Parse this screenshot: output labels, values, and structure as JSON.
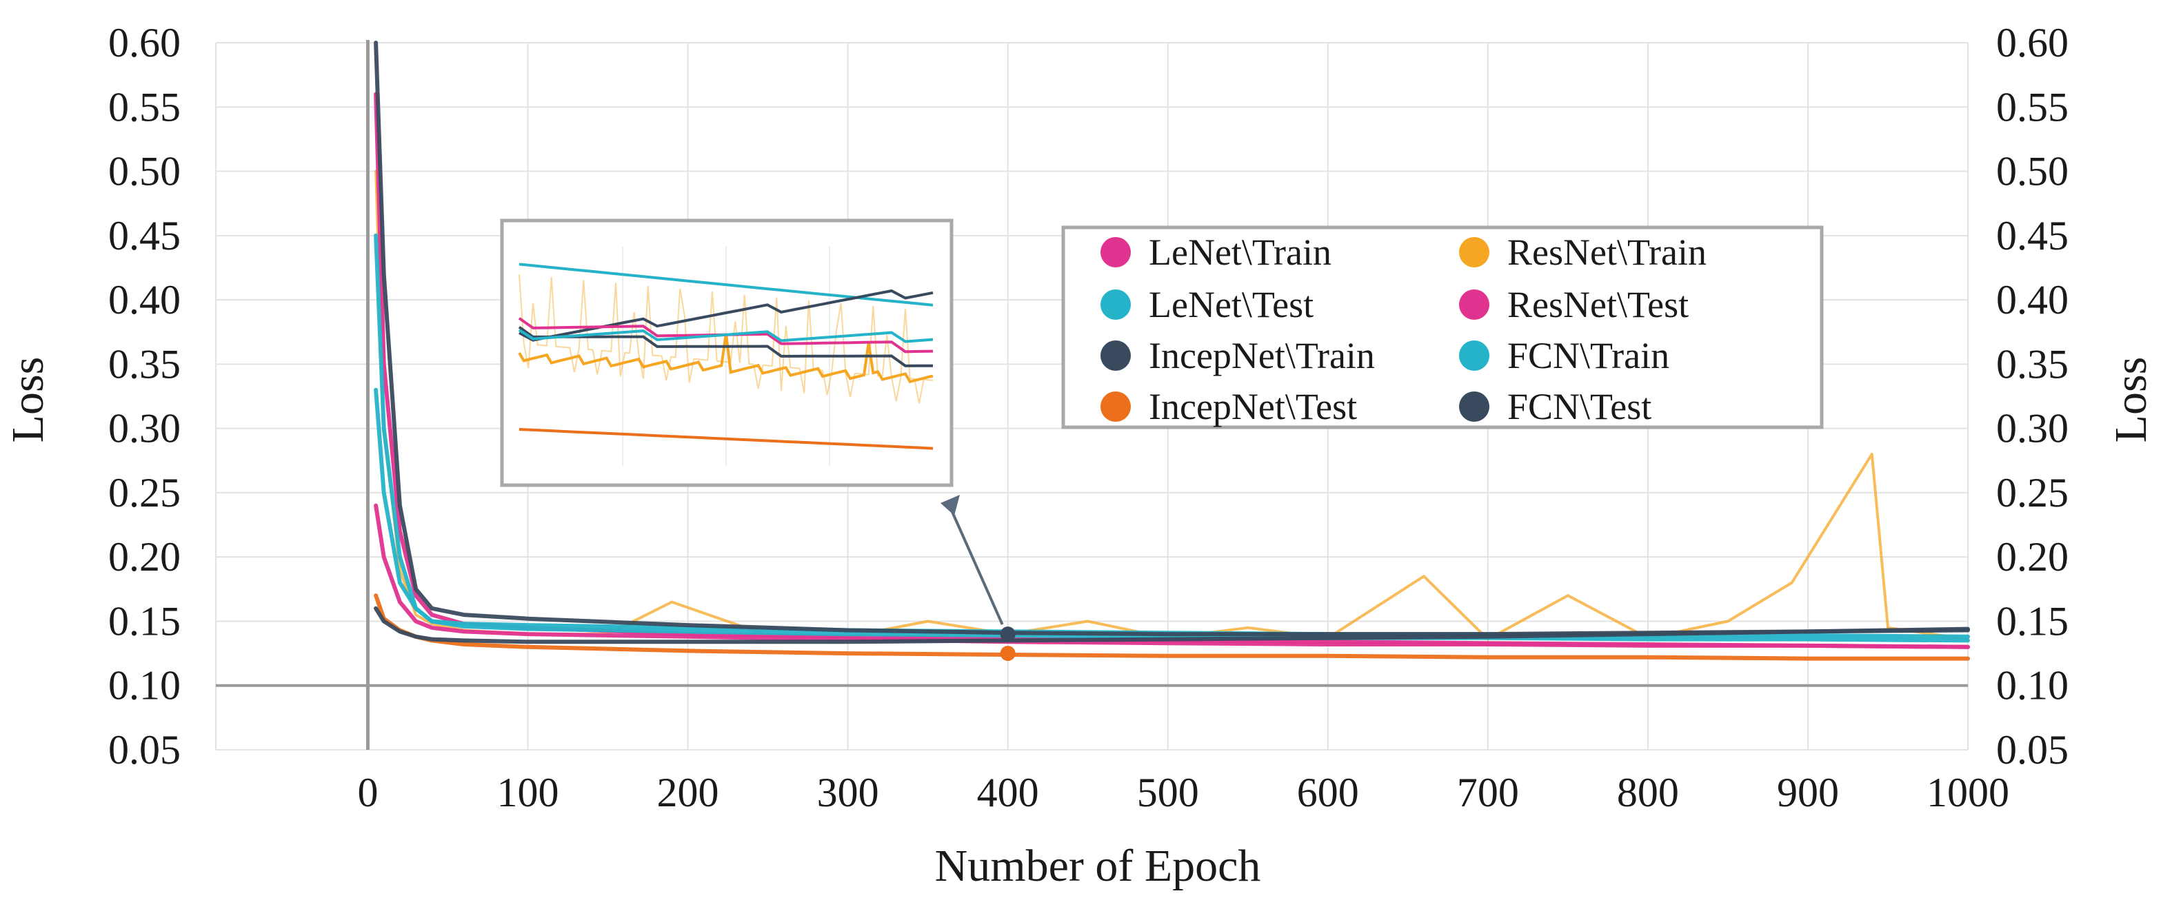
{
  "chart_data": {
    "type": "line",
    "title": "",
    "xlabel": "Number of Epoch",
    "ylabel_left": "Loss",
    "ylabel_right": "Loss",
    "xlim": [
      -95,
      1000
    ],
    "ylim": [
      0.05,
      0.6
    ],
    "x_ticks": [
      0,
      100,
      200,
      300,
      400,
      500,
      600,
      700,
      800,
      900,
      1000
    ],
    "x_tick_labels": [
      "0",
      "100",
      "200",
      "300",
      "400",
      "500",
      "600",
      "700",
      "800",
      "900",
      "1000"
    ],
    "y_ticks": [
      0.05,
      0.1,
      0.15,
      0.2,
      0.25,
      0.3,
      0.35,
      0.4,
      0.45,
      0.5,
      0.55,
      0.6
    ],
    "y_tick_labels": [
      "0.05",
      "0.10",
      "0.15",
      "0.20",
      "0.25",
      "0.30",
      "0.35",
      "0.40",
      "0.45",
      "0.50",
      "0.55",
      "0.60"
    ],
    "grid": true,
    "legend_position": "upper-right",
    "series": [
      {
        "name": "LeNet\\Train",
        "color": "#e0338f",
        "x": [
          5,
          10,
          20,
          30,
          40,
          60,
          100,
          200,
          300,
          400,
          500,
          600,
          700,
          800,
          900,
          1000
        ],
        "values": [
          0.56,
          0.35,
          0.22,
          0.17,
          0.155,
          0.148,
          0.145,
          0.14,
          0.138,
          0.136,
          0.135,
          0.134,
          0.133,
          0.132,
          0.131,
          0.13
        ]
      },
      {
        "name": "LeNet\\Test",
        "color": "#25b3c9",
        "x": [
          5,
          10,
          20,
          30,
          40,
          60,
          100,
          200,
          300,
          400,
          500,
          600,
          700,
          800,
          900,
          1000
        ],
        "values": [
          0.33,
          0.25,
          0.18,
          0.16,
          0.15,
          0.148,
          0.147,
          0.145,
          0.143,
          0.142,
          0.141,
          0.14,
          0.14,
          0.139,
          0.139,
          0.138
        ]
      },
      {
        "name": "IncepNet\\Train",
        "color": "#3a4a5e",
        "x": [
          5,
          10,
          20,
          30,
          40,
          60,
          100,
          200,
          300,
          400,
          500,
          600,
          700,
          800,
          900,
          1000
        ],
        "values": [
          0.6,
          0.42,
          0.24,
          0.175,
          0.16,
          0.155,
          0.152,
          0.147,
          0.143,
          0.141,
          0.14,
          0.14,
          0.14,
          0.141,
          0.142,
          0.143
        ]
      },
      {
        "name": "IncepNet\\Test",
        "color": "#ec6f1b",
        "x": [
          5,
          10,
          20,
          30,
          40,
          60,
          100,
          200,
          300,
          400,
          500,
          600,
          700,
          800,
          900,
          1000
        ],
        "values": [
          0.17,
          0.152,
          0.143,
          0.138,
          0.135,
          0.132,
          0.13,
          0.127,
          0.125,
          0.124,
          0.123,
          0.123,
          0.122,
          0.122,
          0.121,
          0.121
        ]
      },
      {
        "name": "ResNet\\Train",
        "color": "#f5a623",
        "x": [
          5,
          10,
          20,
          30,
          40,
          60,
          100,
          150,
          190,
          250,
          300,
          350,
          400,
          450,
          500,
          550,
          600,
          660,
          700,
          750,
          800,
          850,
          890,
          940,
          950,
          1000
        ],
        "values": [
          0.5,
          0.3,
          0.19,
          0.155,
          0.148,
          0.143,
          0.14,
          0.14,
          0.165,
          0.139,
          0.138,
          0.15,
          0.14,
          0.15,
          0.137,
          0.145,
          0.137,
          0.185,
          0.136,
          0.17,
          0.137,
          0.15,
          0.18,
          0.28,
          0.145,
          0.136
        ]
      },
      {
        "name": "ResNet\\Test",
        "color": "#e0338f",
        "x": [
          5,
          10,
          20,
          30,
          40,
          60,
          100,
          200,
          300,
          400,
          500,
          600,
          700,
          800,
          900,
          1000
        ],
        "values": [
          0.24,
          0.2,
          0.165,
          0.15,
          0.145,
          0.142,
          0.14,
          0.138,
          0.136,
          0.134,
          0.133,
          0.132,
          0.132,
          0.131,
          0.131,
          0.13
        ]
      },
      {
        "name": "FCN\\Train",
        "color": "#25b3c9",
        "x": [
          5,
          10,
          20,
          30,
          40,
          60,
          100,
          200,
          300,
          400,
          500,
          600,
          700,
          800,
          900,
          1000
        ],
        "values": [
          0.45,
          0.3,
          0.2,
          0.16,
          0.15,
          0.146,
          0.144,
          0.142,
          0.14,
          0.139,
          0.138,
          0.137,
          0.137,
          0.136,
          0.136,
          0.135
        ]
      },
      {
        "name": "FCN\\Test",
        "color": "#3a4a5e",
        "x": [
          5,
          10,
          20,
          30,
          40,
          60,
          100,
          200,
          300,
          400,
          500,
          600,
          700,
          800,
          900,
          1000
        ],
        "values": [
          0.16,
          0.15,
          0.142,
          0.138,
          0.136,
          0.135,
          0.134,
          0.134,
          0.134,
          0.135,
          0.136,
          0.137,
          0.138,
          0.14,
          0.142,
          0.144
        ]
      }
    ],
    "zoom_inset": {
      "annotation_epoch": 400,
      "annotation_values": [
        0.125,
        0.14
      ],
      "annotation_colors": [
        "#ec6f1b",
        "#3a4a5e"
      ],
      "inset_series": [
        {
          "color": "#25b3c9",
          "values": [
            0.88,
            0.6
          ]
        },
        {
          "color": "#3a4a5e",
          "values": [
            0.38,
            0.7
          ]
        },
        {
          "color": "#3a4a5e",
          "values": [
            0.42,
            0.2
          ]
        },
        {
          "color": "#e0338f",
          "values": [
            0.48,
            0.3
          ]
        },
        {
          "color": "#25b3c9",
          "values": [
            0.4,
            0.38
          ]
        },
        {
          "color": "#ec6f1b",
          "values": [
            -0.25,
            -0.38
          ]
        }
      ]
    }
  }
}
